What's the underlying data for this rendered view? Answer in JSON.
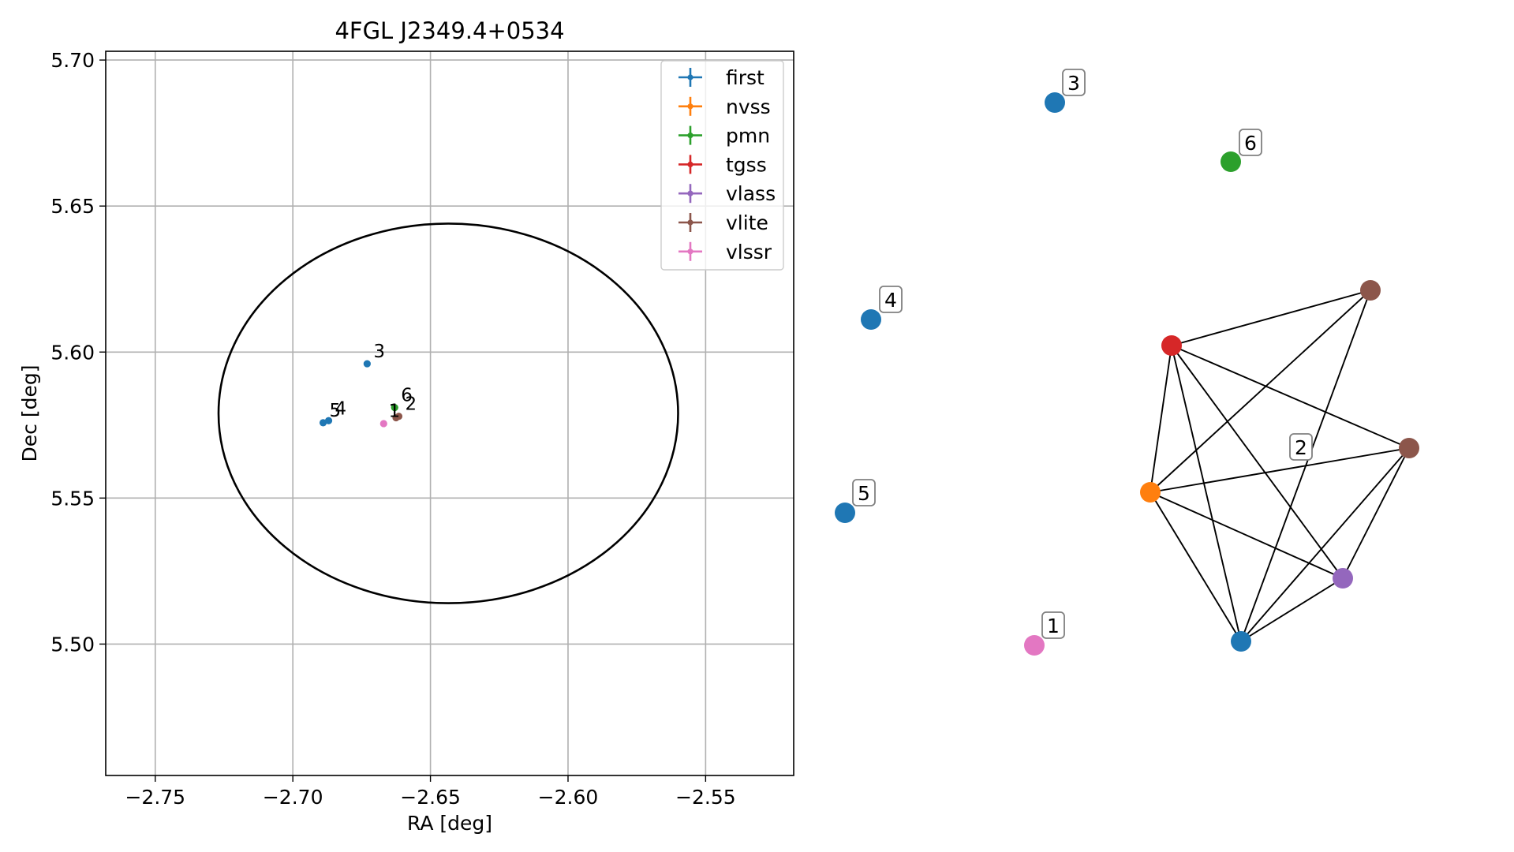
{
  "chart_data": [
    {
      "type": "scatter",
      "title": "4FGL J2349.4+0534",
      "xlabel": "RA [deg]",
      "ylabel": "Dec [deg]",
      "xlim": [
        -2.768,
        -2.518
      ],
      "ylim": [
        5.455,
        5.703
      ],
      "grid": true,
      "legend_position": "top-right",
      "x_ticks": [
        -2.75,
        -2.7,
        -2.65,
        -2.6,
        -2.55
      ],
      "x_tick_labels": [
        "−2.75",
        "−2.70",
        "−2.65",
        "−2.60",
        "−2.55"
      ],
      "y_ticks": [
        5.5,
        5.55,
        5.6,
        5.65,
        5.7
      ],
      "y_tick_labels": [
        "5.50",
        "5.55",
        "5.60",
        "5.65",
        "5.70"
      ],
      "ellipse": {
        "center_ra": -2.6435,
        "center_dec": 5.579,
        "semi_ra": 0.0835,
        "semi_dec": 0.065
      },
      "series": [
        {
          "name": "first",
          "color": "#1f77b4",
          "points": [
            {
              "ra": -2.673,
              "dec": 5.596,
              "label": "3"
            },
            {
              "ra": -2.689,
              "dec": 5.5758,
              "label": "5"
            },
            {
              "ra": -2.687,
              "dec": 5.5765,
              "label": "4"
            }
          ]
        },
        {
          "name": "nvss",
          "color": "#ff7f0e",
          "points": []
        },
        {
          "name": "pmn",
          "color": "#2ca02c",
          "points": [
            {
              "ra": -2.663,
              "dec": 5.581,
              "label": "6"
            }
          ]
        },
        {
          "name": "tgss",
          "color": "#d62728",
          "points": []
        },
        {
          "name": "vlass",
          "color": "#9467bd",
          "points": []
        },
        {
          "name": "vlite",
          "color": "#8c564b",
          "points": [
            {
              "ra": -2.6615,
              "dec": 5.578,
              "label": "2"
            },
            {
              "ra": -2.6625,
              "dec": 5.5775,
              "label": ""
            }
          ]
        },
        {
          "name": "vlssr",
          "color": "#e377c2",
          "points": [
            {
              "ra": -2.667,
              "dec": 5.5755,
              "label": ""
            }
          ]
        }
      ],
      "extra_annotations": [
        {
          "text": "1",
          "ra": -2.6635,
          "dec": 5.58
        }
      ]
    },
    {
      "type": "network",
      "nodes": [
        {
          "id": "n3",
          "color": "#1f77b4",
          "label": "3"
        },
        {
          "id": "n6",
          "color": "#2ca02c",
          "label": "6"
        },
        {
          "id": "n4",
          "color": "#1f77b4",
          "label": "4"
        },
        {
          "id": "n5",
          "color": "#1f77b4",
          "label": "5"
        },
        {
          "id": "n1",
          "color": "#e377c2",
          "label": "1"
        },
        {
          "id": "tg",
          "color": "#d62728",
          "label": ""
        },
        {
          "id": "vl1",
          "color": "#8c564b",
          "label": ""
        },
        {
          "id": "vl2",
          "color": "#8c564b",
          "label": ""
        },
        {
          "id": "nv",
          "color": "#ff7f0e",
          "label": ""
        },
        {
          "id": "vla",
          "color": "#9467bd",
          "label": ""
        },
        {
          "id": "fi",
          "color": "#1f77b4",
          "label": ""
        }
      ],
      "edges": [
        [
          "tg",
          "vl1"
        ],
        [
          "tg",
          "vl2"
        ],
        [
          "tg",
          "nv"
        ],
        [
          "tg",
          "vla"
        ],
        [
          "tg",
          "fi"
        ],
        [
          "vl1",
          "nv"
        ],
        [
          "vl1",
          "fi"
        ],
        [
          "vl2",
          "nv"
        ],
        [
          "vl2",
          "vla"
        ],
        [
          "vl2",
          "fi"
        ],
        [
          "nv",
          "vla"
        ],
        [
          "nv",
          "fi"
        ],
        [
          "vla",
          "fi"
        ]
      ],
      "group_labels": [
        {
          "text": "2"
        }
      ]
    }
  ]
}
